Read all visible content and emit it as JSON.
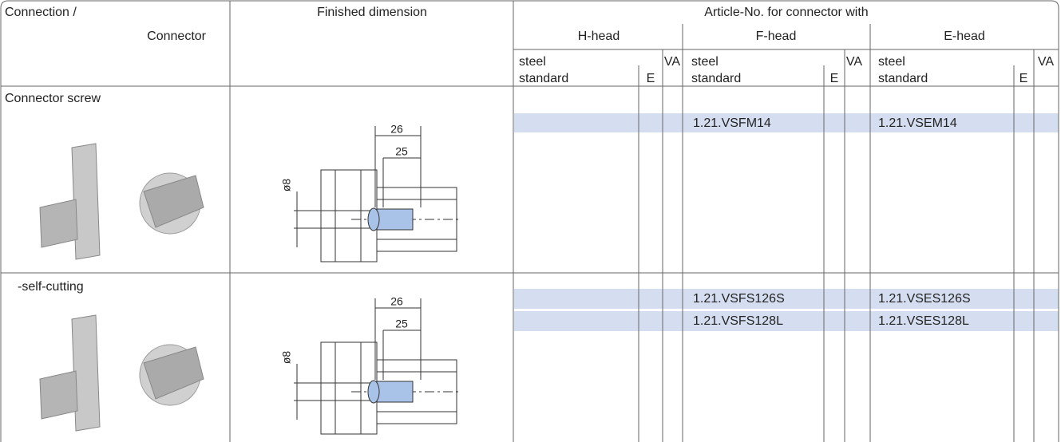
{
  "header": {
    "connection": "Connection /",
    "connector": "Connector",
    "finished_dimension": "Finished dimension",
    "article_no": "Article-No. for connector with",
    "heads": [
      {
        "name": "H-head",
        "steel": "steel",
        "standard": "standard",
        "e": "E",
        "va": "VA"
      },
      {
        "name": "F-head",
        "steel": "steel",
        "standard": "standard",
        "e": "E",
        "va": "VA"
      },
      {
        "name": "E-head",
        "steel": "steel",
        "standard": "standard",
        "e": "E",
        "va": "VA"
      }
    ]
  },
  "rows": [
    {
      "label": "Connector screw",
      "dim_outer": "26",
      "dim_inner": "25",
      "diameter": "ø8",
      "lines": [
        {
          "f": "1.21.VSFM14",
          "e": "1.21.VSEM14"
        }
      ]
    },
    {
      "label": "-self-cutting",
      "dim_outer": "26",
      "dim_inner": "25",
      "diameter": "ø8",
      "lines": [
        {
          "f": "1.21.VSFS126S",
          "e": "1.21.VSES126S"
        },
        {
          "f": "1.21.VSFS128L",
          "e": "1.21.VSES128L"
        }
      ]
    }
  ]
}
